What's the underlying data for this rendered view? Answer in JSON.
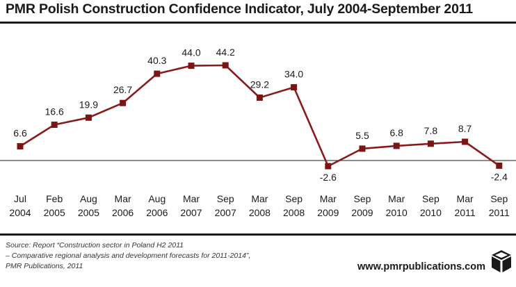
{
  "chart_data": {
    "type": "line",
    "title": "PMR Polish Construction Confidence Indicator, July 2004-September 2011",
    "categories": [
      {
        "month": "Jul",
        "year": "2004"
      },
      {
        "month": "Feb",
        "year": "2005"
      },
      {
        "month": "Aug",
        "year": "2005"
      },
      {
        "month": "Mar",
        "year": "2006"
      },
      {
        "month": "Aug",
        "year": "2006"
      },
      {
        "month": "Mar",
        "year": "2007"
      },
      {
        "month": "Sep",
        "year": "2007"
      },
      {
        "month": "Mar",
        "year": "2008"
      },
      {
        "month": "Sep",
        "year": "2008"
      },
      {
        "month": "Mar",
        "year": "2009"
      },
      {
        "month": "Sep",
        "year": "2009"
      },
      {
        "month": "Mar",
        "year": "2010"
      },
      {
        "month": "Sep",
        "year": "2010"
      },
      {
        "month": "Mar",
        "year": "2011"
      },
      {
        "month": "Sep",
        "year": "2011"
      }
    ],
    "values": [
      6.6,
      16.6,
      19.9,
      26.7,
      40.3,
      44.0,
      44.2,
      29.2,
      34.0,
      -2.6,
      5.5,
      6.8,
      7.8,
      8.7,
      -2.4
    ],
    "labels": [
      "6.6",
      "16.6",
      "19.9",
      "26.7",
      "40.3",
      "44.0",
      "44.2",
      "29.2",
      "34.0",
      "-2.6",
      "5.5",
      "6.8",
      "7.8",
      "8.7",
      "-2.4"
    ],
    "baseline": 0,
    "ylim": [
      -5,
      50
    ],
    "grid": false,
    "line_color": "#8b1a1a",
    "marker_color": "#7a1515"
  },
  "source": {
    "line1": "Source: Report “Construction sector in Poland H2 2011",
    "line2": "– Comparative regional analysis and development forecasts for 2011-2014”,",
    "line3": "PMR Publications, 2011"
  },
  "website": "www.pmrpublications.com",
  "logo_icon": "cube-logo-icon"
}
